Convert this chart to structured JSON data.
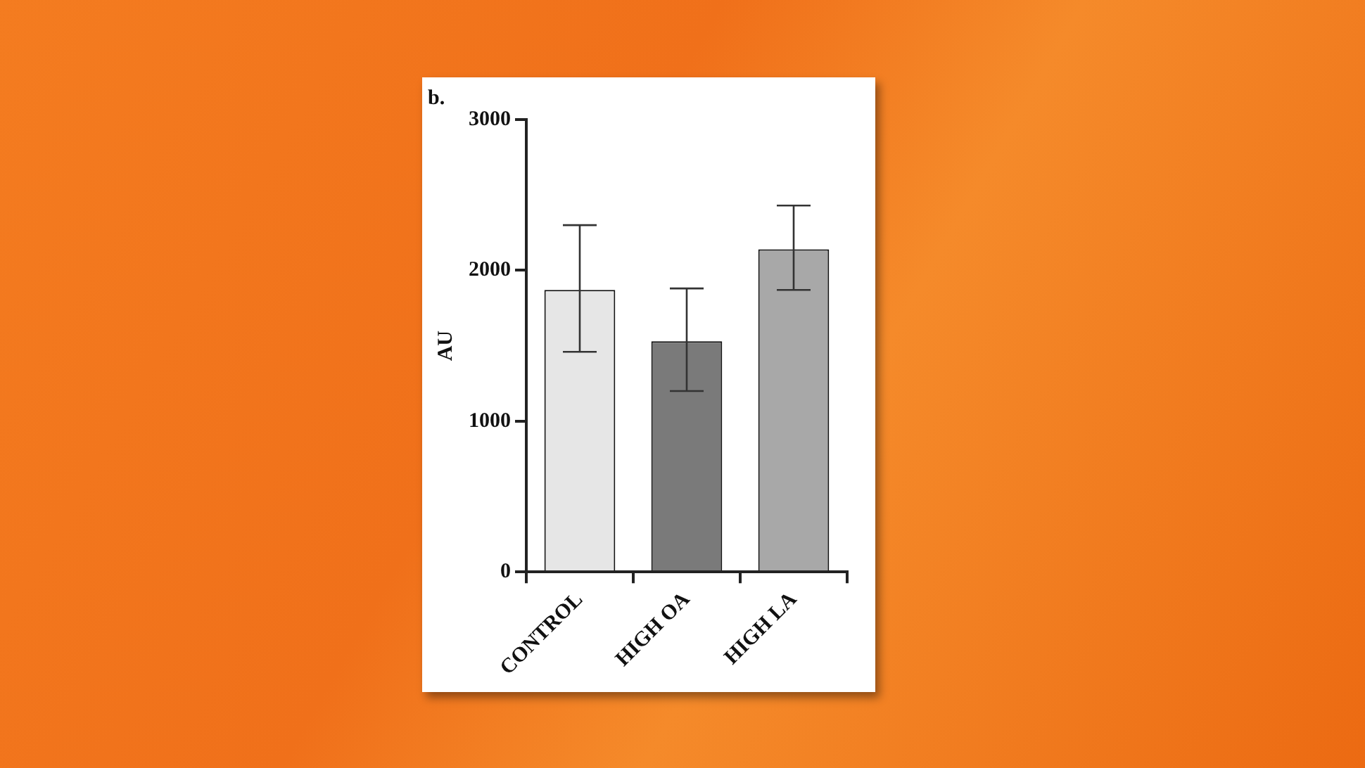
{
  "chart_data": {
    "type": "bar",
    "title": "b.",
    "ylabel": "AU",
    "categories": [
      "CONTROL",
      "HIGH OA",
      "HIGH LA"
    ],
    "values": [
      1870,
      1530,
      2140
    ],
    "colors": [
      "#e6e6e6",
      "#7a7a7a",
      "#a8a8a8"
    ],
    "errors": [
      [
        1460,
        2300
      ],
      [
        1200,
        1880
      ],
      [
        1870,
        2430
      ]
    ],
    "ylim": [
      0,
      3000
    ],
    "yticks": [
      0,
      1000,
      2000,
      3000
    ],
    "grid": false,
    "legend": false
  }
}
